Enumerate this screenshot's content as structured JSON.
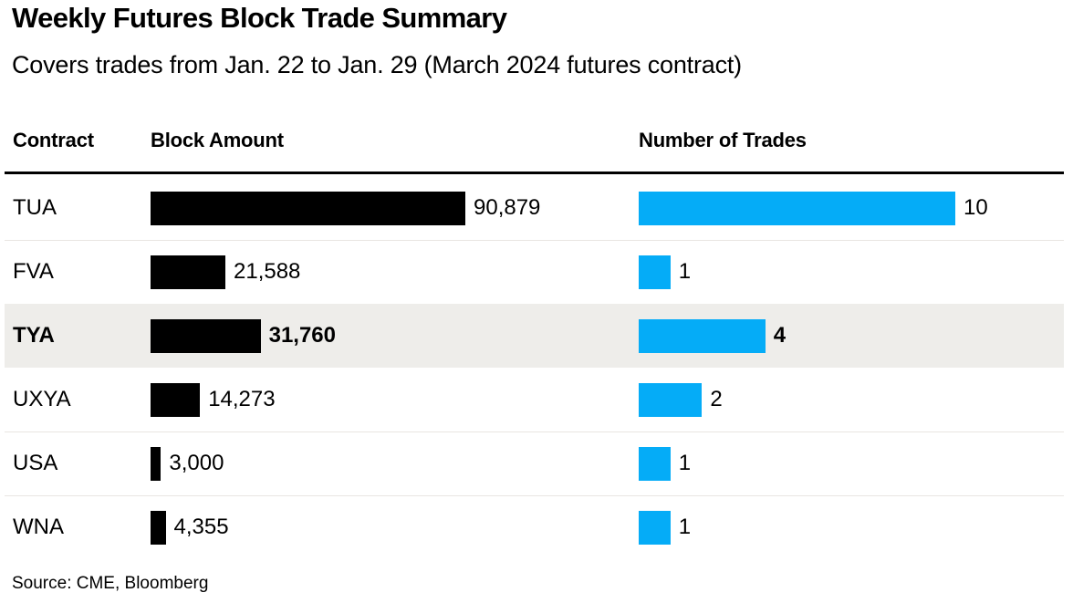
{
  "title": "Weekly Futures Block Trade Summary",
  "subtitle": "Covers trades from Jan. 22 to Jan. 29 (March 2024 futures contract)",
  "columns": {
    "contract": "Contract",
    "block_amount": "Block Amount",
    "num_trades": "Number of Trades"
  },
  "source": "Source: CME, Bloomberg",
  "colors": {
    "block_bar": "#000000",
    "trades_bar": "#05acf7",
    "highlight_row": "#eeedea",
    "separator": "#e9e6e2",
    "text": "#000000"
  },
  "chart_data": {
    "type": "bar",
    "title": "Weekly Futures Block Trade Summary",
    "subtitle": "Covers trades from Jan. 22 to Jan. 29 (March 2024 futures contract)",
    "orientation": "horizontal",
    "categories": [
      "TUA",
      "FVA",
      "TYA",
      "UXYA",
      "USA",
      "WNA"
    ],
    "series": [
      {
        "name": "Block Amount",
        "color": "#000000",
        "values": [
          90879,
          21588,
          31760,
          14273,
          3000,
          4355
        ],
        "labels": [
          "90,879",
          "21,588",
          "31,760",
          "14,273",
          "3,000",
          "4,355"
        ]
      },
      {
        "name": "Number of Trades",
        "color": "#05acf7",
        "values": [
          10,
          1,
          4,
          2,
          1,
          1
        ],
        "labels": [
          "10",
          "1",
          "4",
          "2",
          "1",
          "1"
        ]
      }
    ],
    "highlighted_category": "TYA",
    "value_labels_shown": true,
    "grid": false,
    "legend": false,
    "source": "Source: CME, Bloomberg"
  }
}
